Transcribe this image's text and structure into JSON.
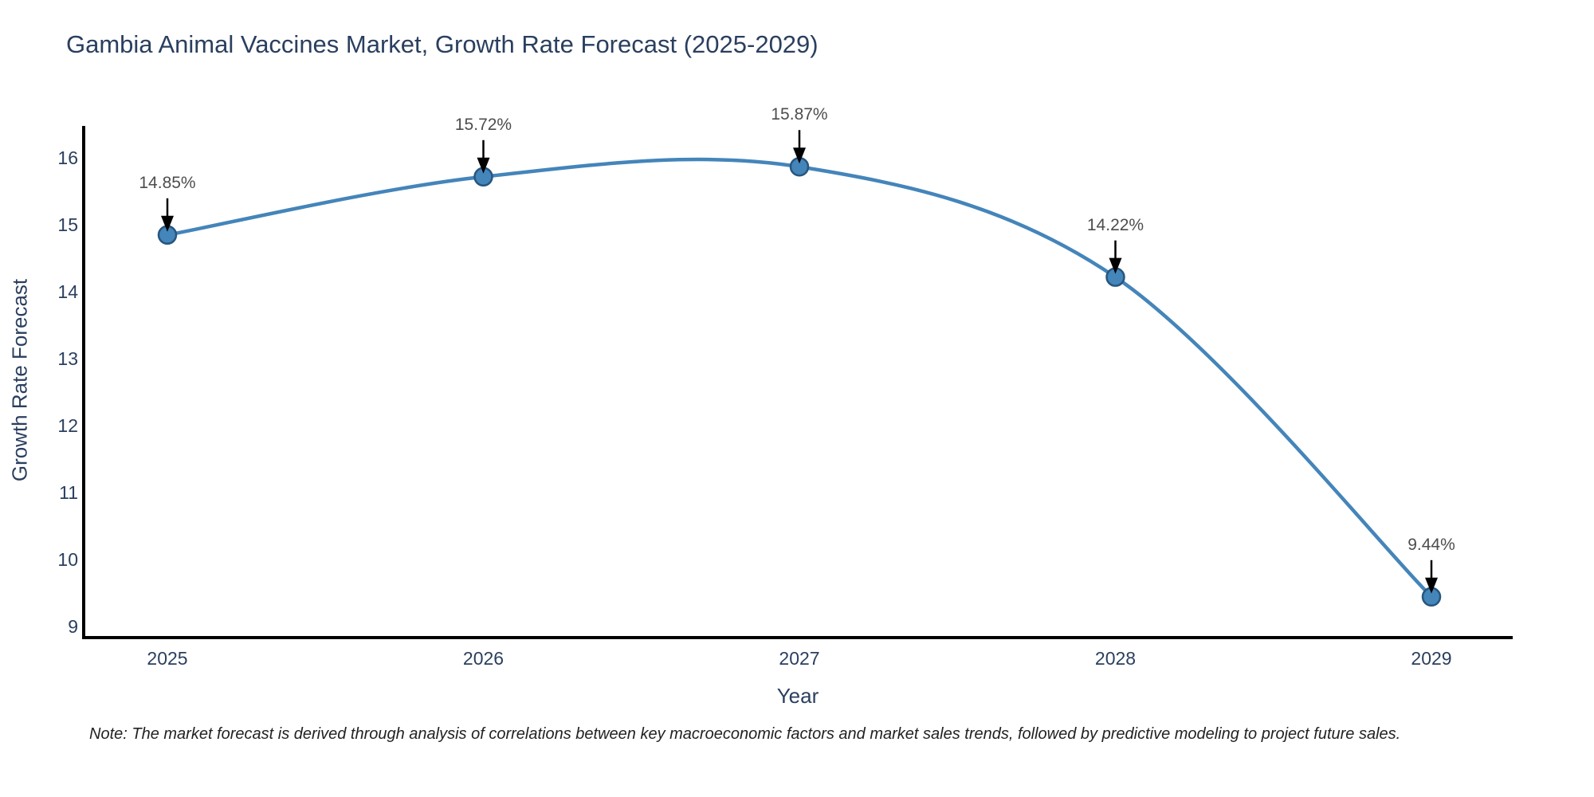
{
  "chart_data": {
    "type": "line",
    "title": "Gambia Animal Vaccines Market, Growth Rate Forecast (2025-2029)",
    "xlabel": "Year",
    "ylabel": "Growth Rate Forecast",
    "x": [
      "2025",
      "2026",
      "2027",
      "2028",
      "2029"
    ],
    "series": [
      {
        "name": "Growth Rate Forecast",
        "values": [
          14.85,
          15.72,
          15.87,
          14.22,
          9.44
        ]
      }
    ],
    "point_labels": [
      "14.85%",
      "15.72%",
      "15.87%",
      "14.22%",
      "9.44%"
    ],
    "yticks": [
      9,
      10,
      11,
      12,
      13,
      14,
      15,
      16
    ],
    "ylim": [
      8.83,
      16.48
    ],
    "line_shape": "spline",
    "grid": false,
    "legend": false,
    "annotations": "black down-arrow from each value label to its data point",
    "colors": {
      "line": "#4485ba",
      "marker_fill": "#4485ba",
      "marker_edge": "#27567f",
      "axis": "#000000",
      "axis_text": "#2a3f5f",
      "point_label_text": "#4d4d4d",
      "arrow": "#000000",
      "background": "#ffffff"
    }
  },
  "footnote": "Note: The market forecast is derived through analysis of correlations between key macroeconomic factors and market sales trends, followed by predictive modeling to project future sales."
}
